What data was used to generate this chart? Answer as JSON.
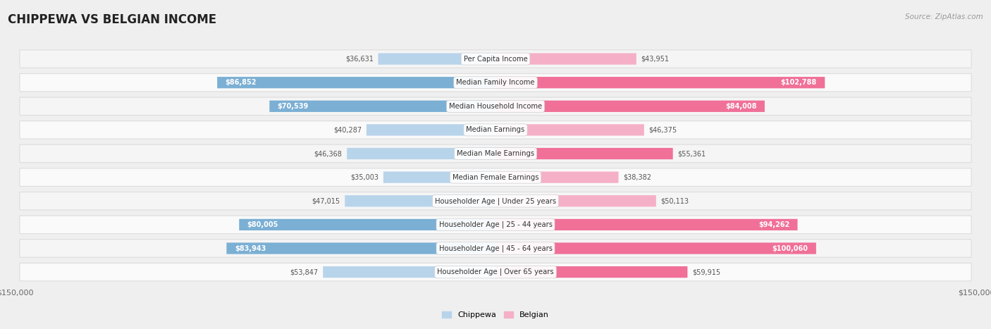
{
  "title": "CHIPPEWA VS BELGIAN INCOME",
  "source": "Source: ZipAtlas.com",
  "categories": [
    "Per Capita Income",
    "Median Family Income",
    "Median Household Income",
    "Median Earnings",
    "Median Male Earnings",
    "Median Female Earnings",
    "Householder Age | Under 25 years",
    "Householder Age | 25 - 44 years",
    "Householder Age | 45 - 64 years",
    "Householder Age | Over 65 years"
  ],
  "chippewa_values": [
    36631,
    86852,
    70539,
    40287,
    46368,
    35003,
    47015,
    80005,
    83943,
    53847
  ],
  "belgian_values": [
    43951,
    102788,
    84008,
    46375,
    55361,
    38382,
    50113,
    94262,
    100060,
    59915
  ],
  "chippewa_labels": [
    "$36,631",
    "$86,852",
    "$70,539",
    "$40,287",
    "$46,368",
    "$35,003",
    "$47,015",
    "$80,005",
    "$83,943",
    "$53,847"
  ],
  "belgian_labels": [
    "$43,951",
    "$102,788",
    "$84,008",
    "$46,375",
    "$55,361",
    "$38,382",
    "$50,113",
    "$94,262",
    "$100,060",
    "$59,915"
  ],
  "chippewa_color_light": "#b8d4eb",
  "chippewa_color_medium": "#7bafd4",
  "belgian_color_light": "#f5b0c8",
  "belgian_color_medium": "#f07098",
  "large_threshold": 55000,
  "inside_label_threshold": 60000,
  "max_value": 150000,
  "bg_color": "#efefef",
  "row_bg_even": "#f5f5f5",
  "row_bg_odd": "#fafafa",
  "row_border": "#dddddd"
}
